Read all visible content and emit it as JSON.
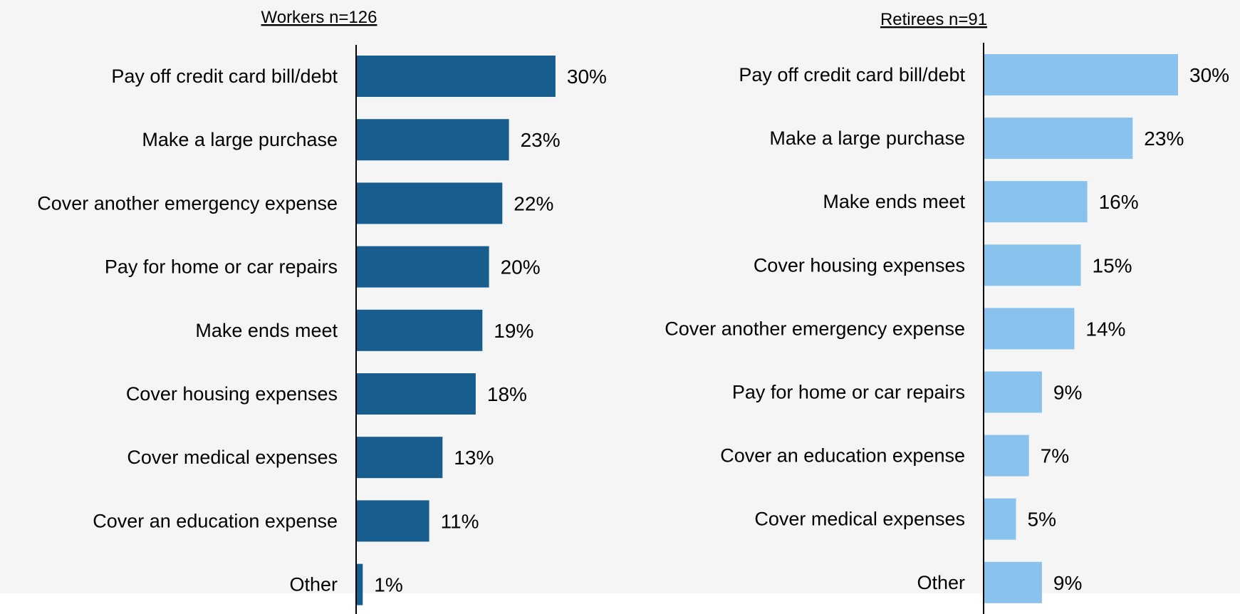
{
  "chart_data": [
    {
      "type": "bar",
      "orientation": "horizontal",
      "title": "Workers n=126",
      "color": "#175e8e",
      "categories": [
        "Pay off credit card bill/debt",
        "Make a large purchase",
        "Cover another emergency expense",
        "Pay for home or car repairs",
        "Make ends meet",
        "Cover housing expenses",
        "Cover medical expenses",
        "Cover an education expense",
        "Other"
      ],
      "values": [
        30,
        23,
        22,
        20,
        19,
        18,
        13,
        11,
        1
      ],
      "value_labels": [
        "30%",
        "23%",
        "22%",
        "20%",
        "19%",
        "18%",
        "13%",
        "11%",
        "1%"
      ],
      "grid": false
    },
    {
      "type": "bar",
      "orientation": "horizontal",
      "title": "Retirees n=91",
      "color": "#89c2ec",
      "categories": [
        "Pay off credit card bill/debt",
        "Make a large purchase",
        "Make ends meet",
        "Cover housing expenses",
        "Cover another emergency expense",
        "Pay for home or car repairs",
        "Cover an education expense",
        "Cover medical expenses",
        "Other"
      ],
      "values": [
        30,
        23,
        16,
        15,
        14,
        9,
        7,
        5,
        9
      ],
      "value_labels": [
        "30%",
        "23%",
        "16%",
        "15%",
        "14%",
        "9%",
        "7%",
        "5%",
        "9%"
      ],
      "grid": false
    }
  ]
}
